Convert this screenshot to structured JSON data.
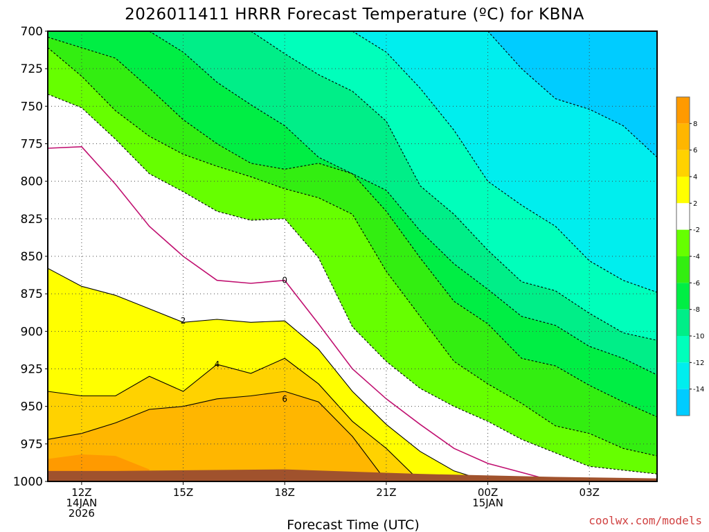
{
  "chart_data": {
    "type": "heatmap",
    "title": "2026011411 HRRR Forecast Temperature (ºC) for KBNA",
    "xlabel": "Forecast Time (UTC)",
    "ylabel": "",
    "y_ticks": [
      "700",
      "725",
      "750",
      "775",
      "800",
      "825",
      "850",
      "875",
      "900",
      "925",
      "950",
      "975",
      "1000"
    ],
    "y_axis_inverted": true,
    "ylim": [
      1000,
      700
    ],
    "x_ticks": [
      {
        "hour": 12,
        "lines": [
          "12Z",
          "14JAN",
          "2026"
        ]
      },
      {
        "hour": 15,
        "lines": [
          "15Z"
        ]
      },
      {
        "hour": 18,
        "lines": [
          "18Z"
        ]
      },
      {
        "hour": 21,
        "lines": [
          "21Z"
        ]
      },
      {
        "hour": 24,
        "lines": [
          "00Z",
          "15JAN"
        ]
      },
      {
        "hour": 27,
        "lines": [
          "03Z"
        ]
      }
    ],
    "xlim": [
      11,
      29
    ],
    "grid": true,
    "colorbar": {
      "labels": [
        "8",
        "6",
        "4",
        "2",
        "-2",
        "-4",
        "-6",
        "-8",
        "-10",
        "-12",
        "-14"
      ],
      "colors": [
        "#ff9a00",
        "#ffb600",
        "#ffd200",
        "#ffff00",
        "#ffffff",
        "#66ff00",
        "#33ee11",
        "#00ee44",
        "#00ee88",
        "#00ffbb",
        "#00eeee",
        "#00ccff"
      ]
    },
    "contour_labels": [
      "0",
      "2",
      "4",
      "6"
    ],
    "series": [
      {
        "level": 6,
        "points": [
          [
            11,
            972
          ],
          [
            12,
            968
          ],
          [
            13,
            961
          ],
          [
            14,
            952
          ],
          [
            15,
            950
          ],
          [
            16,
            945
          ],
          [
            17,
            943
          ],
          [
            18,
            940
          ],
          [
            19,
            947
          ],
          [
            20,
            970
          ],
          [
            21,
            1000
          ]
        ]
      },
      {
        "level": 4,
        "points": [
          [
            11,
            940
          ],
          [
            12,
            943
          ],
          [
            13,
            943
          ],
          [
            14,
            930
          ],
          [
            15,
            940
          ],
          [
            16,
            922
          ],
          [
            17,
            928
          ],
          [
            18,
            918
          ],
          [
            19,
            935
          ],
          [
            20,
            960
          ],
          [
            21,
            978
          ],
          [
            22,
            1000
          ]
        ]
      },
      {
        "level": 2,
        "points": [
          [
            11,
            858
          ],
          [
            12,
            870
          ],
          [
            13,
            876
          ],
          [
            14,
            885
          ],
          [
            15,
            894
          ],
          [
            16,
            892
          ],
          [
            17,
            894
          ],
          [
            18,
            893
          ],
          [
            19,
            912
          ],
          [
            20,
            940
          ],
          [
            21,
            962
          ],
          [
            22,
            980
          ],
          [
            23,
            993
          ],
          [
            24,
            1000
          ]
        ]
      },
      {
        "level": 0,
        "points": [
          [
            11,
            778
          ],
          [
            12,
            777
          ],
          [
            13,
            802
          ],
          [
            14,
            830
          ],
          [
            15,
            850
          ],
          [
            16,
            866
          ],
          [
            17,
            868
          ],
          [
            18,
            866
          ],
          [
            19,
            895
          ],
          [
            20,
            925
          ],
          [
            21,
            945
          ],
          [
            22,
            962
          ],
          [
            23,
            978
          ],
          [
            24,
            988
          ],
          [
            26,
            1000
          ]
        ]
      },
      {
        "level": -2,
        "points": [
          [
            11,
            742
          ],
          [
            12,
            751
          ],
          [
            13,
            772
          ],
          [
            14,
            795
          ],
          [
            15,
            807
          ],
          [
            16,
            820
          ],
          [
            17,
            826
          ],
          [
            18,
            825
          ],
          [
            19,
            851
          ],
          [
            20,
            897
          ],
          [
            21,
            920
          ],
          [
            22,
            938
          ],
          [
            23,
            950
          ],
          [
            24,
            960
          ],
          [
            25,
            972
          ],
          [
            27,
            990
          ],
          [
            29,
            995
          ]
        ]
      },
      {
        "level": -4,
        "points": [
          [
            11,
            711
          ],
          [
            12,
            730
          ],
          [
            13,
            753
          ],
          [
            14,
            770
          ],
          [
            15,
            782
          ],
          [
            16,
            790
          ],
          [
            17,
            797
          ],
          [
            18,
            805
          ],
          [
            19,
            811
          ],
          [
            20,
            822
          ],
          [
            21,
            860
          ],
          [
            22,
            890
          ],
          [
            23,
            920
          ],
          [
            24,
            935
          ],
          [
            25,
            948
          ],
          [
            26,
            963
          ],
          [
            27,
            968
          ],
          [
            28,
            978
          ],
          [
            29,
            983
          ]
        ]
      },
      {
        "level": -6,
        "points": [
          [
            11,
            704
          ],
          [
            13,
            718
          ],
          [
            14,
            738
          ],
          [
            15,
            759
          ],
          [
            16,
            775
          ],
          [
            17,
            788
          ],
          [
            18,
            792
          ],
          [
            19,
            788
          ],
          [
            20,
            795
          ],
          [
            21,
            820
          ],
          [
            22,
            851
          ],
          [
            23,
            880
          ],
          [
            24,
            895
          ],
          [
            25,
            918
          ],
          [
            26,
            923
          ],
          [
            27,
            936
          ],
          [
            28,
            947
          ],
          [
            29,
            957
          ]
        ]
      },
      {
        "level": -8,
        "points": [
          [
            14,
            700
          ],
          [
            15,
            714
          ],
          [
            16,
            734
          ],
          [
            17,
            749
          ],
          [
            18,
            763
          ],
          [
            19,
            784
          ],
          [
            20,
            795
          ],
          [
            21,
            806
          ],
          [
            22,
            833
          ],
          [
            23,
            855
          ],
          [
            24,
            872
          ],
          [
            25,
            890
          ],
          [
            26,
            896
          ],
          [
            27,
            910
          ],
          [
            28,
            918
          ],
          [
            29,
            929
          ]
        ]
      },
      {
        "level": -10,
        "points": [
          [
            17,
            700
          ],
          [
            18,
            715
          ],
          [
            19,
            729
          ],
          [
            20,
            740
          ],
          [
            21,
            760
          ],
          [
            22,
            803
          ],
          [
            23,
            822
          ],
          [
            24,
            846
          ],
          [
            25,
            867
          ],
          [
            26,
            873
          ],
          [
            27,
            888
          ],
          [
            28,
            901
          ],
          [
            29,
            906
          ]
        ]
      },
      {
        "level": -12,
        "points": [
          [
            20,
            700
          ],
          [
            21,
            714
          ],
          [
            22,
            738
          ],
          [
            23,
            766
          ],
          [
            24,
            800
          ],
          [
            25,
            816
          ],
          [
            26,
            830
          ],
          [
            27,
            853
          ],
          [
            28,
            866
          ],
          [
            29,
            874
          ]
        ]
      },
      {
        "level": -14,
        "points": [
          [
            24,
            700
          ],
          [
            25,
            725
          ],
          [
            26,
            745
          ],
          [
            27,
            752
          ],
          [
            28,
            763
          ],
          [
            29,
            784
          ]
        ]
      }
    ]
  },
  "credit": "coolwx.com/models"
}
